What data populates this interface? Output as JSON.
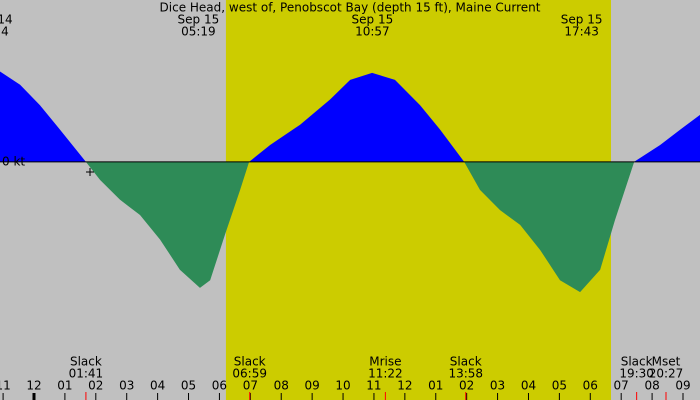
{
  "chart_data": {
    "type": "area",
    "title": "Dice Head, west of, Penobscot Bay (depth 15 ft), Maine Current",
    "xlim": [
      -1.1,
      21.55
    ],
    "ylim": [
      -3.4,
      2.31
    ],
    "x": [
      -1.1,
      -0.45,
      0.19,
      0.84,
      1.68,
      2.14,
      2.78,
      3.43,
      4.08,
      4.72,
      5.37,
      5.7,
      6.18,
      6.67,
      6.96,
      7.64,
      8.61,
      9.58,
      10.23,
      10.94,
      11.68,
      12.49,
      13.14,
      13.92,
      14.43,
      15.08,
      15.73,
      16.38,
      17.02,
      17.67,
      18.32,
      18.8,
      19.42,
      20.26,
      20.91,
      21.55
    ],
    "values": [
      1.29,
      1.1,
      0.81,
      0.46,
      0,
      -0.26,
      -0.54,
      -0.76,
      -1.11,
      -1.54,
      -1.8,
      -1.69,
      -1.04,
      -0.4,
      0,
      0.24,
      0.53,
      0.89,
      1.17,
      1.27,
      1.17,
      0.81,
      0.46,
      0,
      -0.4,
      -0.69,
      -0.9,
      -1.26,
      -1.69,
      -1.86,
      -1.54,
      -0.83,
      0,
      0.24,
      0.46,
      0.67
    ],
    "flood_color": "#0000ff",
    "ebb_color": "#2e8b57",
    "background_color": "#c0c0c0",
    "daylight_color": "#cccc00",
    "daylight": [
      6.21,
      18.67
    ],
    "zero_label": "0 kt",
    "xticks": [
      {
        "value": -1,
        "label": "11"
      },
      {
        "value": 0,
        "label": "12"
      },
      {
        "value": 1,
        "label": "01"
      },
      {
        "value": 2,
        "label": "02"
      },
      {
        "value": 3,
        "label": "03"
      },
      {
        "value": 4,
        "label": "04"
      },
      {
        "value": 5,
        "label": "05"
      },
      {
        "value": 6,
        "label": "06"
      },
      {
        "value": 7,
        "label": "07"
      },
      {
        "value": 8,
        "label": "08"
      },
      {
        "value": 9,
        "label": "09"
      },
      {
        "value": 10,
        "label": "10"
      },
      {
        "value": 11,
        "label": "11"
      },
      {
        "value": 12,
        "label": "12"
      },
      {
        "value": 13,
        "label": "01"
      },
      {
        "value": 14,
        "label": "02"
      },
      {
        "value": 15,
        "label": "03"
      },
      {
        "value": 16,
        "label": "04"
      },
      {
        "value": 17,
        "label": "05"
      },
      {
        "value": 18,
        "label": "06"
      },
      {
        "value": 19,
        "label": "07"
      },
      {
        "value": 20,
        "label": "08"
      },
      {
        "value": 21,
        "label": "09"
      }
    ],
    "peaks": [
      {
        "date": "14",
        "time": "4",
        "x": -0.94
      },
      {
        "date": "Sep 15",
        "time": "05:19",
        "x": 5.32
      },
      {
        "date": "Sep 15",
        "time": "10:57",
        "x": 10.95
      },
      {
        "date": "Sep 15",
        "time": "17:43",
        "x": 17.72
      }
    ],
    "events": [
      {
        "name": "Slack",
        "time": "01:41",
        "x": 1.68
      },
      {
        "name": "Slack",
        "time": "06:59",
        "x": 6.98
      },
      {
        "name": "Mrise",
        "time": "11:22",
        "x": 11.37
      },
      {
        "name": "Slack",
        "time": "13:58",
        "x": 13.97
      },
      {
        "name": "Slack",
        "time": "19:30",
        "x": 19.5
      },
      {
        "name": "Mset",
        "time": "20:27",
        "x": 20.45
      }
    ]
  }
}
